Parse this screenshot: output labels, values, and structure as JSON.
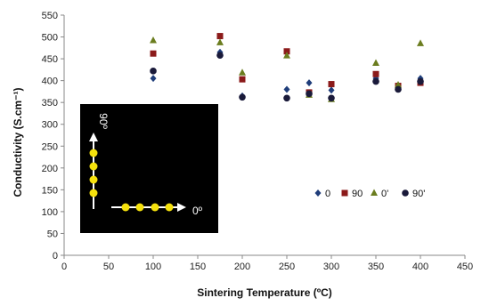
{
  "chart_data": {
    "type": "scatter",
    "xlabel": "Sintering Temperature (ºC)",
    "ylabel": "Conductivity (S.cm⁻¹)",
    "xlim": [
      0,
      450
    ],
    "ylim": [
      0,
      550
    ],
    "xticks": [
      0,
      50,
      100,
      150,
      200,
      250,
      300,
      350,
      400,
      450
    ],
    "yticks": [
      0,
      50,
      100,
      150,
      200,
      250,
      300,
      350,
      400,
      450,
      500,
      550
    ],
    "grid": false,
    "legend_position": "bottom-right",
    "series": [
      {
        "name": "0",
        "marker": "diamond",
        "color": "#1f3d7a",
        "points": [
          [
            100,
            405
          ],
          [
            175,
            465
          ],
          [
            200,
            365
          ],
          [
            250,
            380
          ],
          [
            275,
            395
          ],
          [
            300,
            378
          ],
          [
            350,
            405
          ],
          [
            375,
            385
          ],
          [
            400,
            405
          ]
        ]
      },
      {
        "name": "90",
        "marker": "square",
        "color": "#8b1a1a",
        "points": [
          [
            100,
            462
          ],
          [
            175,
            502
          ],
          [
            200,
            403
          ],
          [
            250,
            467
          ],
          [
            275,
            373
          ],
          [
            300,
            392
          ],
          [
            350,
            415
          ],
          [
            375,
            388
          ],
          [
            400,
            395
          ]
        ]
      },
      {
        "name": "0'",
        "marker": "triangle",
        "color": "#6b7d1f",
        "points": [
          [
            100,
            492
          ],
          [
            175,
            487
          ],
          [
            200,
            418
          ],
          [
            250,
            457
          ],
          [
            275,
            367
          ],
          [
            300,
            357
          ],
          [
            350,
            440
          ],
          [
            375,
            390
          ],
          [
            400,
            485
          ]
        ]
      },
      {
        "name": "90'",
        "marker": "circle",
        "color": "#1a1a3a",
        "points": [
          [
            100,
            422
          ],
          [
            175,
            458
          ],
          [
            200,
            362
          ],
          [
            250,
            360
          ],
          [
            275,
            370
          ],
          [
            300,
            360
          ],
          [
            350,
            398
          ],
          [
            375,
            380
          ],
          [
            400,
            398
          ]
        ]
      }
    ]
  },
  "inset": {
    "label_vertical": "90º",
    "label_horizontal": "0º"
  }
}
